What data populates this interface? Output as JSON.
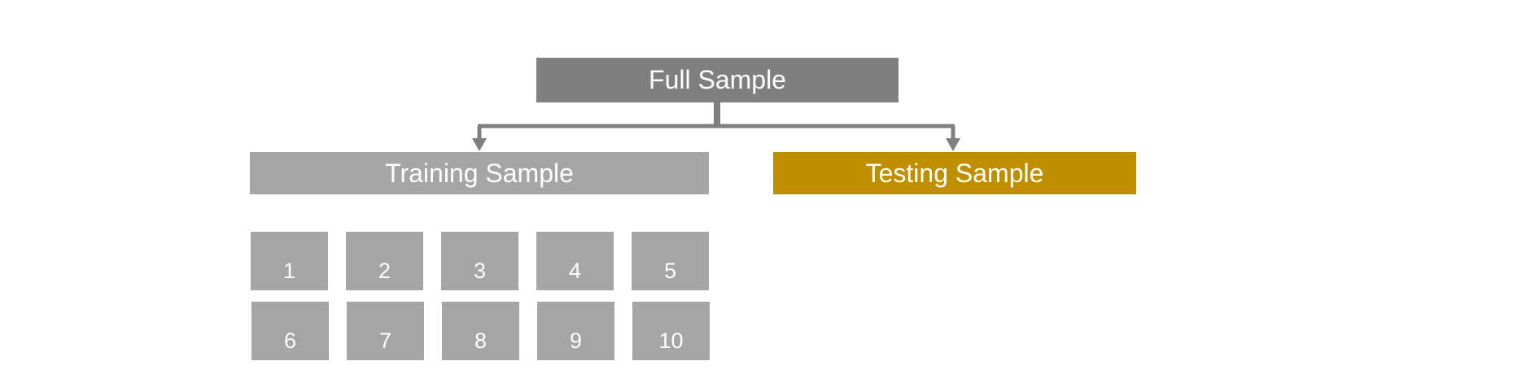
{
  "diagram": {
    "root": {
      "label": "Full Sample",
      "color": "#7f7f7f"
    },
    "branches": [
      {
        "label": "Training Sample",
        "color": "#a5a5a5"
      },
      {
        "label": "Testing Sample",
        "color": "#bf8f00"
      }
    ],
    "folds": [
      "1",
      "2",
      "3",
      "4",
      "5",
      "6",
      "7",
      "8",
      "9",
      "10"
    ],
    "fold_color": "#a5a5a5",
    "connector_color": "#7f7f7f"
  }
}
